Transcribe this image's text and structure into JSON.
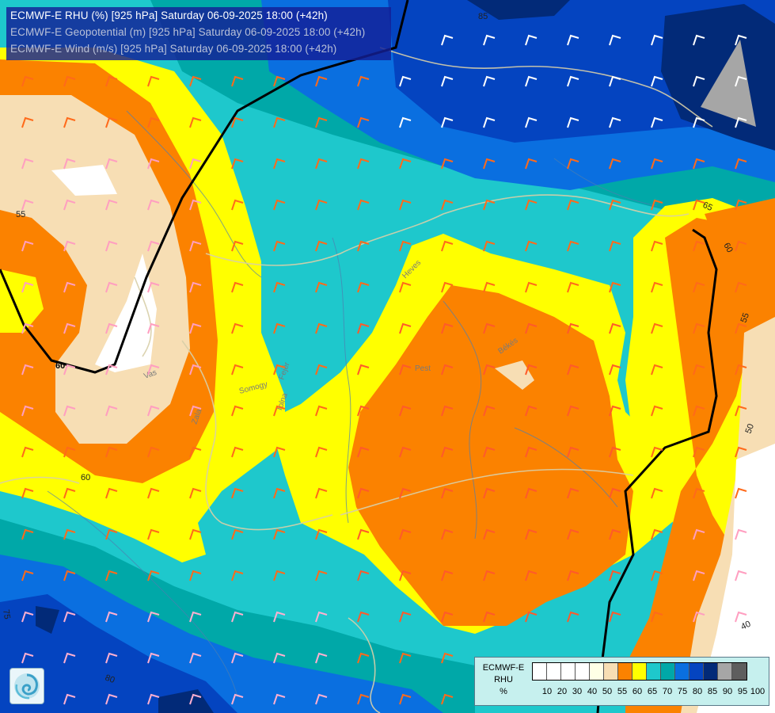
{
  "title_lines": {
    "rhu": "ECMWF-E RHU (%) [925 hPa] Saturday 06-09-2025 18:00 (+42h)",
    "geo": "ECMWF-E Geopotential (m) [925 hPa] Saturday 06-09-2025 18:00 (+42h)",
    "wind": "ECMWF-E Wind (m/s) [925 hPa] Saturday 06-09-2025 18:00 (+42h)"
  },
  "legend": {
    "model": "ECMWF-E",
    "variable": "RHU",
    "unit": "%",
    "ticks": [
      "10",
      "20",
      "30",
      "40",
      "50",
      "55",
      "60",
      "65",
      "70",
      "75",
      "80",
      "85",
      "90",
      "95",
      "100"
    ],
    "colors": [
      "#ffffff",
      "#ffffff",
      "#ffffff",
      "#ffffff",
      "#ffffe6",
      "#f7deb4",
      "#fb8200",
      "#ffff00",
      "#1ec8cc",
      "#00a8a8",
      "#0a6fe0",
      "#0444c0",
      "#022a78",
      "#a6a6a6",
      "#5e5e5e"
    ]
  },
  "contour_labels": [
    "85",
    "55",
    "60",
    "60",
    "65",
    "60",
    "55",
    "50",
    "60",
    "40",
    "80",
    "75"
  ],
  "place_labels": [
    "Vas",
    "Somogy",
    "Zala",
    "Tolna",
    "Heves",
    "Pest",
    "Békés",
    "Fejér"
  ],
  "colors": {
    "tan": "#f7deb4",
    "orange": "#fb8200",
    "yellow": "#ffff00",
    "cyan": "#1ec8cc",
    "teal": "#00a8a8",
    "blue": "#0a6fe0",
    "darkblue": "#0444c0",
    "navy": "#022a78",
    "gray": "#a6a6a6",
    "geopotential_line": "#000000",
    "border_line": "#d8cfa8"
  },
  "icons": {
    "logo": "swirl-logo-icon",
    "wind_barbs": "wind-barb-icon"
  }
}
